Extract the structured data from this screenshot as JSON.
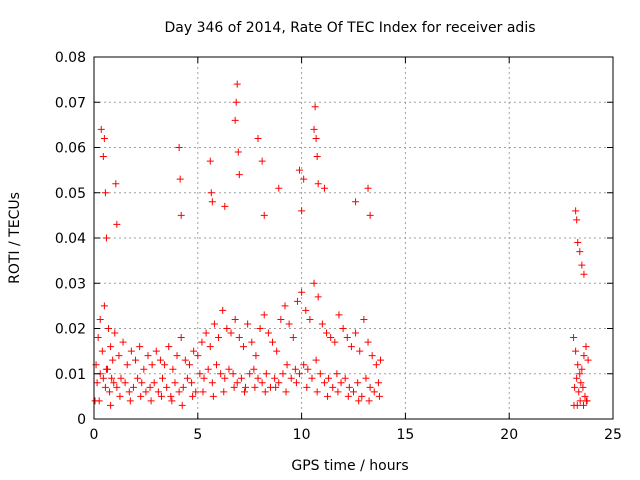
{
  "chart_data": {
    "type": "scatter",
    "title": "Day 346 of 2014, Rate Of TEC Index for receiver adis",
    "xlabel": "GPS time / hours",
    "ylabel": "ROTI / TECUs",
    "xlim": [
      0,
      25
    ],
    "ylim": [
      0,
      0.08
    ],
    "xticks": [
      0,
      5,
      10,
      15,
      20,
      25
    ],
    "xtick_labels": [
      "0",
      "5",
      "10",
      "15",
      "20",
      "25"
    ],
    "yticks": [
      0,
      0.01,
      0.02,
      0.03,
      0.04,
      0.05,
      0.06,
      0.07,
      0.08
    ],
    "ytick_labels": [
      "0",
      "0.01",
      "0.02",
      "0.03",
      "0.04",
      "0.05",
      "0.06",
      "0.07",
      "0.08"
    ],
    "grid": true,
    "marker": "+",
    "color": "#ff0000",
    "series": [
      {
        "name": "ROTI",
        "x": [
          0.1,
          0.2,
          0.3,
          0.4,
          0.5,
          0.6,
          0.7,
          0.8,
          0.9,
          1.0,
          1.2,
          1.4,
          1.6,
          1.8,
          2.0,
          2.2,
          2.4,
          2.6,
          2.8,
          3.0,
          3.2,
          3.4,
          3.6,
          3.8,
          4.0,
          4.2,
          4.4,
          4.6,
          4.8,
          5.0,
          5.2,
          5.4,
          5.6,
          5.8,
          6.0,
          6.2,
          6.4,
          6.6,
          6.8,
          7.0,
          7.2,
          7.4,
          7.6,
          7.8,
          8.0,
          8.2,
          8.4,
          8.6,
          8.8,
          9.0,
          9.2,
          9.4,
          9.6,
          9.8,
          10.0,
          10.2,
          10.4,
          10.6,
          10.8,
          11.0,
          11.2,
          11.4,
          11.6,
          11.8,
          12.0,
          12.2,
          12.4,
          12.6,
          12.8,
          13.0,
          13.2,
          13.4,
          13.6,
          13.8,
          23.1,
          23.2,
          23.3,
          23.4,
          23.5,
          23.6,
          23.7,
          23.8,
          0.15,
          0.3,
          0.45,
          0.55,
          0.65,
          0.75,
          0.85,
          0.95,
          1.1,
          1.3,
          1.5,
          1.7,
          1.9,
          2.1,
          2.3,
          2.5,
          2.7,
          2.9,
          3.1,
          3.3,
          3.5,
          3.7,
          3.9,
          4.1,
          4.3,
          4.5,
          4.7,
          4.9,
          5.1,
          5.3,
          5.5,
          5.7,
          5.9,
          6.1,
          6.3,
          6.5,
          6.7,
          6.9,
          7.1,
          7.3,
          7.5,
          7.7,
          7.9,
          8.1,
          8.3,
          8.5,
          8.7,
          8.9,
          9.1,
          9.3,
          9.5,
          9.7,
          9.9,
          10.1,
          10.3,
          10.5,
          10.7,
          10.9,
          11.1,
          11.3,
          11.5,
          11.7,
          11.9,
          12.1,
          12.3,
          12.5,
          12.7,
          12.9,
          13.1,
          13.3,
          13.5,
          13.7,
          23.15,
          23.25,
          23.35,
          23.45,
          23.55,
          23.65,
          23.75,
          0.35,
          0.45,
          0.5,
          0.55,
          0.6,
          1.05,
          1.1,
          4.1,
          4.15,
          4.2,
          5.6,
          5.65,
          5.7,
          6.3,
          6.8,
          6.85,
          6.9,
          6.95,
          7.0,
          7.9,
          8.1,
          8.2,
          8.9,
          9.9,
          10.0,
          10.1,
          10.6,
          10.65,
          10.7,
          10.75,
          10.8,
          11.1,
          12.6,
          13.2,
          13.3,
          23.2,
          23.25,
          23.3,
          23.4,
          23.5,
          23.6,
          0.05,
          0.25,
          0.8,
          1.25,
          1.75,
          2.25,
          2.75,
          3.25,
          3.75,
          4.25,
          4.75,
          5.25,
          5.75,
          6.25,
          6.75,
          7.25,
          7.75,
          8.25,
          8.75,
          9.25,
          9.75,
          10.25,
          10.75,
          11.25,
          11.75,
          12.25,
          12.75,
          13.25,
          13.75,
          23.12,
          23.28,
          23.42,
          23.58,
          23.72
        ],
        "y": [
          0.012,
          0.018,
          0.022,
          0.015,
          0.025,
          0.011,
          0.02,
          0.016,
          0.013,
          0.019,
          0.014,
          0.017,
          0.012,
          0.015,
          0.013,
          0.016,
          0.011,
          0.014,
          0.012,
          0.015,
          0.013,
          0.012,
          0.016,
          0.011,
          0.014,
          0.018,
          0.013,
          0.012,
          0.015,
          0.014,
          0.017,
          0.019,
          0.016,
          0.021,
          0.018,
          0.024,
          0.02,
          0.019,
          0.022,
          0.018,
          0.016,
          0.021,
          0.017,
          0.014,
          0.02,
          0.023,
          0.019,
          0.017,
          0.015,
          0.022,
          0.025,
          0.021,
          0.018,
          0.026,
          0.028,
          0.024,
          0.022,
          0.03,
          0.027,
          0.021,
          0.019,
          0.018,
          0.017,
          0.023,
          0.02,
          0.018,
          0.016,
          0.019,
          0.015,
          0.022,
          0.017,
          0.014,
          0.012,
          0.013,
          0.018,
          0.015,
          0.012,
          0.01,
          0.011,
          0.014,
          0.016,
          0.013,
          0.008,
          0.01,
          0.009,
          0.007,
          0.011,
          0.006,
          0.009,
          0.008,
          0.007,
          0.009,
          0.008,
          0.006,
          0.007,
          0.009,
          0.008,
          0.006,
          0.007,
          0.008,
          0.006,
          0.009,
          0.007,
          0.005,
          0.008,
          0.006,
          0.007,
          0.009,
          0.008,
          0.006,
          0.01,
          0.009,
          0.011,
          0.008,
          0.012,
          0.01,
          0.009,
          0.011,
          0.01,
          0.008,
          0.009,
          0.007,
          0.01,
          0.011,
          0.009,
          0.008,
          0.01,
          0.007,
          0.009,
          0.008,
          0.01,
          0.012,
          0.009,
          0.011,
          0.01,
          0.012,
          0.011,
          0.009,
          0.013,
          0.01,
          0.008,
          0.009,
          0.007,
          0.01,
          0.008,
          0.009,
          0.007,
          0.006,
          0.008,
          0.005,
          0.009,
          0.007,
          0.006,
          0.008,
          0.007,
          0.009,
          0.006,
          0.008,
          0.007,
          0.005,
          0.004,
          0.064,
          0.058,
          0.062,
          0.05,
          0.04,
          0.052,
          0.043,
          0.06,
          0.053,
          0.045,
          0.057,
          0.05,
          0.048,
          0.047,
          0.066,
          0.07,
          0.074,
          0.059,
          0.054,
          0.062,
          0.057,
          0.045,
          0.051,
          0.055,
          0.046,
          0.053,
          0.064,
          0.069,
          0.062,
          0.058,
          0.052,
          0.051,
          0.048,
          0.051,
          0.045,
          0.046,
          0.044,
          0.039,
          0.037,
          0.034,
          0.032,
          0.004,
          0.004,
          0.003,
          0.005,
          0.004,
          0.005,
          0.004,
          0.005,
          0.004,
          0.003,
          0.005,
          0.006,
          0.005,
          0.006,
          0.007,
          0.006,
          0.007,
          0.006,
          0.007,
          0.006,
          0.008,
          0.007,
          0.006,
          0.005,
          0.006,
          0.005,
          0.004,
          0.004,
          0.005,
          0.003,
          0.003,
          0.004,
          0.003,
          0.004
        ]
      }
    ]
  }
}
